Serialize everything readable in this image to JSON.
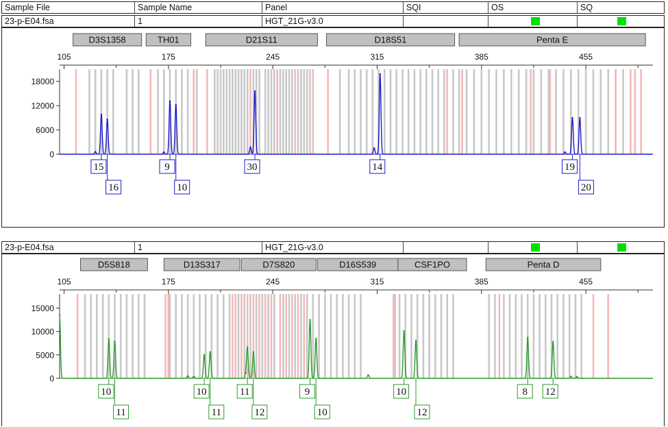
{
  "header": {
    "columns": [
      "Sample File",
      "Sample Name",
      "Panel",
      "SQI",
      "OS",
      "SQ"
    ]
  },
  "colors": {
    "panel1_trace": "#1a1acc",
    "panel2_trace": "#2a9a2a",
    "bin_gray": "#c8c8c8",
    "bin_pink": "#f5b8b8",
    "locus_box": "#c0c0c0",
    "quality_green": "#00e000"
  },
  "panels": [
    {
      "sample_file": "23-p-E04.fsa",
      "sample_name": "1",
      "panel_name": "HGT_21G-v3.0",
      "sqi": "",
      "os_status": "green",
      "sq_status": "green",
      "loci": [
        {
          "name": "D3S1358",
          "start": 111,
          "end": 157
        },
        {
          "name": "TH01",
          "start": 160,
          "end": 190
        },
        {
          "name": "D21S11",
          "start": 200,
          "end": 275
        },
        {
          "name": "D18S51",
          "start": 281,
          "end": 367
        },
        {
          "name": "Penta E",
          "start": 370,
          "end": 495
        }
      ],
      "chart_data": {
        "type": "line",
        "x_ticks": [
          105,
          175,
          245,
          315,
          385,
          455
        ],
        "xlim": [
          102,
          500
        ],
        "y_ticks": [
          0,
          6000,
          12000,
          18000
        ],
        "ylim": [
          0,
          21000
        ],
        "trace_color": "#1a1acc",
        "peaks": [
          {
            "x": 130,
            "height": 9800
          },
          {
            "x": 134,
            "height": 8600
          },
          {
            "x": 176,
            "height": 13100
          },
          {
            "x": 180,
            "height": 12200
          },
          {
            "x": 233,
            "height": 15600
          },
          {
            "x": 230,
            "height": 1700
          },
          {
            "x": 317,
            "height": 19800
          },
          {
            "x": 313,
            "height": 1500
          },
          {
            "x": 446,
            "height": 9000
          },
          {
            "x": 451,
            "height": 9000
          },
          {
            "x": 126,
            "height": 600
          },
          {
            "x": 172,
            "height": 500
          },
          {
            "x": 441,
            "height": 500
          }
        ],
        "alleles": [
          {
            "label": "15",
            "x": 130,
            "row": 0
          },
          {
            "label": "16",
            "x": 134,
            "row": 1
          },
          {
            "label": "9",
            "x": 176,
            "row": 0
          },
          {
            "label": "10",
            "x": 180,
            "row": 1
          },
          {
            "label": "30",
            "x": 233,
            "row": 0
          },
          {
            "label": "14",
            "x": 317,
            "row": 0
          },
          {
            "label": "19",
            "x": 446,
            "row": 0
          },
          {
            "label": "20",
            "x": 451,
            "row": 1
          }
        ],
        "bins_gray": [
          122,
          126,
          130,
          134,
          138,
          147,
          151,
          155,
          168,
          172,
          176,
          180,
          184,
          188,
          194,
          206,
          208,
          210,
          212,
          214,
          216,
          218,
          220,
          222,
          224,
          226,
          228,
          232,
          234,
          236,
          240,
          242,
          244,
          246,
          250,
          252,
          254,
          256,
          258,
          262,
          264,
          266,
          268,
          270,
          290,
          296,
          300,
          304,
          308,
          312,
          316,
          320,
          324,
          328,
          332,
          336,
          340,
          344,
          348,
          352,
          356,
          360,
          366,
          370,
          375,
          380,
          385,
          390,
          395,
          400,
          405,
          410,
          415,
          420,
          425,
          430,
          435,
          440,
          445,
          450,
          455,
          460,
          465,
          470,
          475,
          480
        ],
        "bins_pink": [
          113,
          163,
          192,
          201,
          230,
          248,
          260,
          272,
          282,
          362,
          372,
          418,
          431,
          475,
          485,
          488,
          492
        ]
      }
    },
    {
      "sample_file": "23-p-E04.fsa",
      "sample_name": "1",
      "panel_name": "HGT_21G-v3.0",
      "sqi": "",
      "os_status": "green",
      "sq_status": "green",
      "loci": [
        {
          "name": "D5S818",
          "start": 116,
          "end": 161
        },
        {
          "name": "D13S317",
          "start": 172,
          "end": 223
        },
        {
          "name": "D7S820",
          "start": 224,
          "end": 274
        },
        {
          "name": "D16S539",
          "start": 275,
          "end": 329
        },
        {
          "name": "CSF1PO",
          "start": 329,
          "end": 375
        },
        {
          "name": "Penta D",
          "start": 388,
          "end": 465
        }
      ],
      "chart_data": {
        "type": "line",
        "x_ticks": [
          105,
          175,
          245,
          315,
          385,
          455
        ],
        "xlim": [
          102,
          500
        ],
        "y_ticks": [
          0,
          5000,
          10000,
          15000
        ],
        "ylim": [
          0,
          18000
        ],
        "trace_color": "#2a9a2a",
        "peaks": [
          {
            "x": 102,
            "height": 13500
          },
          {
            "x": 135,
            "height": 8400
          },
          {
            "x": 139,
            "height": 7900
          },
          {
            "x": 199,
            "height": 5000
          },
          {
            "x": 203,
            "height": 5600
          },
          {
            "x": 228,
            "height": 6500
          },
          {
            "x": 232,
            "height": 5600
          },
          {
            "x": 227,
            "height": 1200
          },
          {
            "x": 270,
            "height": 12500
          },
          {
            "x": 274,
            "height": 8500
          },
          {
            "x": 309,
            "height": 700
          },
          {
            "x": 333,
            "height": 10100
          },
          {
            "x": 341,
            "height": 8000
          },
          {
            "x": 416,
            "height": 8700
          },
          {
            "x": 433,
            "height": 7800
          },
          {
            "x": 188,
            "height": 500
          },
          {
            "x": 192,
            "height": 400
          },
          {
            "x": 445,
            "height": 400
          },
          {
            "x": 449,
            "height": 350
          }
        ],
        "alleles": [
          {
            "label": "10",
            "x": 135,
            "row": 0
          },
          {
            "label": "11",
            "x": 139,
            "row": 1
          },
          {
            "label": "10",
            "x": 199,
            "row": 0
          },
          {
            "label": "11",
            "x": 203,
            "row": 1
          },
          {
            "label": "11",
            "x": 228,
            "row": 0
          },
          {
            "label": "12",
            "x": 232,
            "row": 1
          },
          {
            "label": "9",
            "x": 270,
            "row": 0
          },
          {
            "label": "10",
            "x": 274,
            "row": 1
          },
          {
            "label": "10",
            "x": 333,
            "row": 0
          },
          {
            "label": "12",
            "x": 341,
            "row": 1
          },
          {
            "label": "8",
            "x": 416,
            "row": 0
          },
          {
            "label": "12",
            "x": 433,
            "row": 0
          }
        ],
        "bins_gray": [
          119,
          123,
          127,
          131,
          135,
          139,
          143,
          147,
          151,
          155,
          159,
          176,
          180,
          184,
          188,
          192,
          196,
          200,
          204,
          208,
          212,
          216,
          222,
          226,
          230,
          234,
          238,
          242,
          246,
          252,
          256,
          260,
          264,
          268,
          272,
          276,
          280,
          284,
          288,
          292,
          296,
          300,
          304,
          326,
          330,
          334,
          338,
          342,
          346,
          350,
          354,
          358,
          362,
          366,
          390,
          394,
          400,
          404,
          408,
          412,
          416,
          420,
          424,
          428,
          432,
          436,
          440,
          444,
          448,
          452
        ],
        "bins_pink": [
          114,
          173,
          175,
          218,
          220,
          224,
          228,
          232,
          236,
          240,
          244,
          250,
          254,
          258,
          262,
          266,
          327,
          397,
          460,
          470
        ]
      }
    }
  ]
}
